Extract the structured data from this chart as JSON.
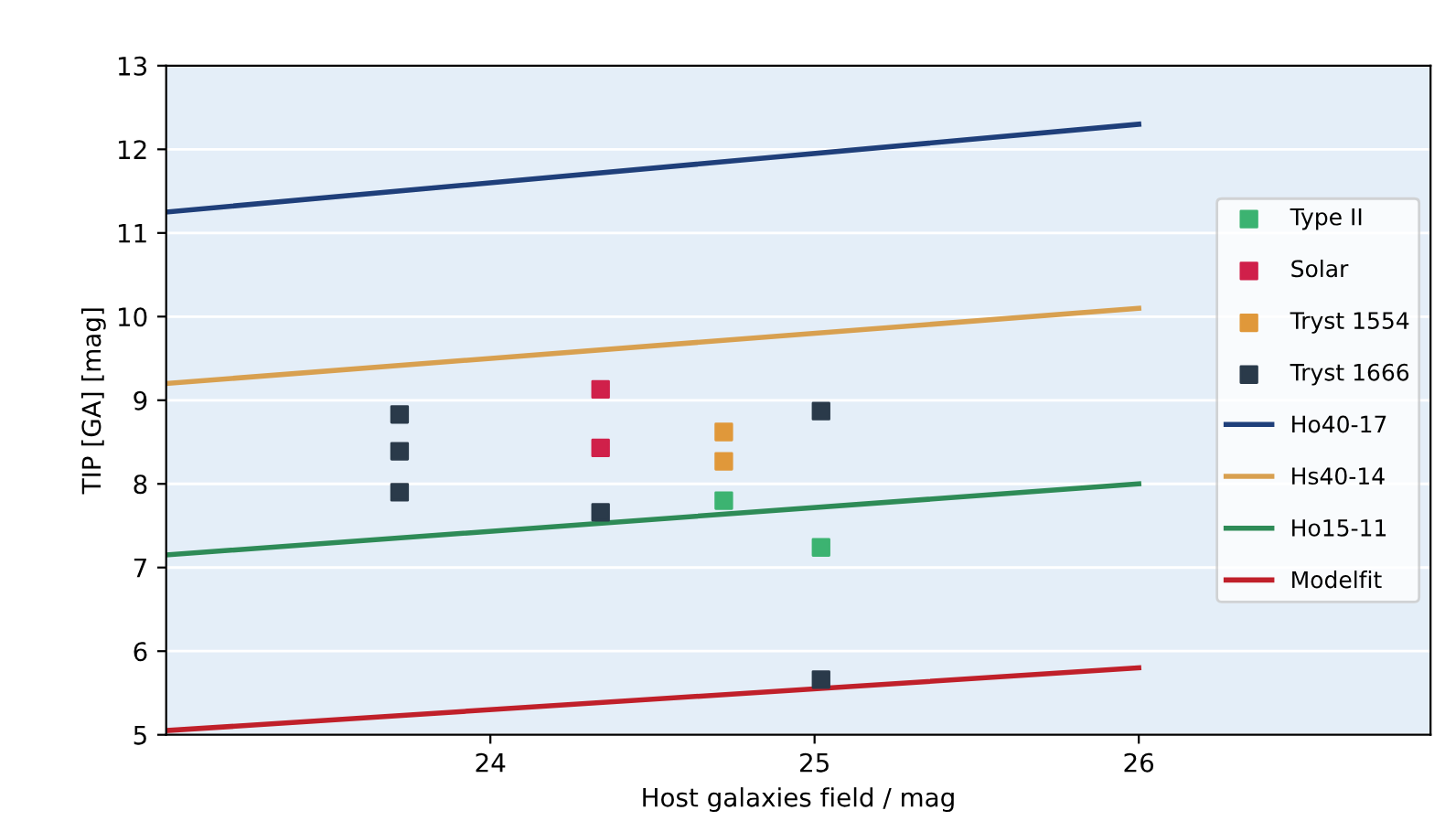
{
  "chart_data": {
    "type": "scatter",
    "xlabel": "Host galaxies field / mag",
    "ylabel": "TIP [GA] [mag]",
    "xlim": [
      23,
      26.9
    ],
    "ylim": [
      5,
      13
    ],
    "xticks": [
      24,
      25,
      26
    ],
    "yticks": [
      5,
      6,
      7,
      8,
      9,
      10,
      11,
      12,
      13
    ],
    "grid": "y",
    "legend": "right",
    "marker": "square",
    "series": [
      {
        "name": "Type II",
        "color": "#3cb371",
        "x": [
          24.72,
          25.02
        ],
        "values": [
          7.8,
          7.24
        ]
      },
      {
        "name": "Solar",
        "color": "#d0204a",
        "x": [
          24.34,
          24.34
        ],
        "values": [
          9.13,
          8.43
        ]
      },
      {
        "name": "Tryst 1554",
        "color": "#e0983a",
        "x": [
          24.72,
          24.72
        ],
        "values": [
          8.62,
          8.27
        ]
      },
      {
        "name": "Tryst 1666",
        "color": "#2a3a4a",
        "x": [
          23.72,
          23.72,
          23.72,
          24.34,
          25.02,
          25.02
        ],
        "values": [
          8.83,
          8.39,
          7.9,
          7.66,
          8.87,
          5.66
        ]
      },
      {
        "name": "Ho40-17",
        "type": "line",
        "marker": "none",
        "color": "#1f3f7a",
        "x": [
          23,
          26
        ],
        "values": [
          11.25,
          12.3
        ]
      },
      {
        "name": "Hs40-14",
        "type": "line",
        "marker": "none",
        "color": "#d8a050",
        "x": [
          23,
          26
        ],
        "values": [
          9.2,
          10.1
        ]
      },
      {
        "name": "Ho15-11",
        "type": "line",
        "marker": "none",
        "color": "#2e8b57",
        "x": [
          23,
          26
        ],
        "values": [
          7.15,
          8.0
        ]
      },
      {
        "name": "Modelfit",
        "type": "line",
        "marker": "none",
        "color": "#c0202a",
        "x": [
          23,
          26
        ],
        "values": [
          5.05,
          5.8
        ]
      }
    ]
  }
}
